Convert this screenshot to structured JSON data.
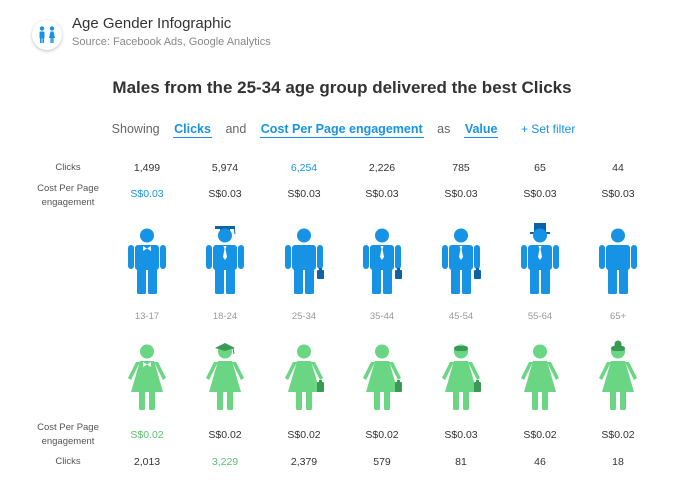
{
  "app": {
    "title": "Age Gender Infographic",
    "source": "Source: Facebook Ads, Google Analytics",
    "icon": "people-male-female-icon"
  },
  "headline": "Males from the 25-34 age group delivered the best Clicks",
  "filter": {
    "showing": "Showing",
    "metric1": "Clicks",
    "and": "and",
    "metric2": "Cost Per Page engagement",
    "as": "as",
    "mode": "Value",
    "set_filter": "+ Set filter"
  },
  "labels": {
    "clicks": "Clicks",
    "cost": "Cost Per Page engagement"
  },
  "ages": [
    "13-17",
    "18-24",
    "25-34",
    "35-44",
    "45-54",
    "55-64",
    "65+"
  ],
  "male": {
    "clicks": [
      "1,499",
      "5,974",
      "6,254",
      "2,226",
      "785",
      "65",
      "44"
    ],
    "cost": [
      "S$0.03",
      "S$0.03",
      "S$0.03",
      "S$0.03",
      "S$0.03",
      "S$0.03",
      "S$0.03"
    ]
  },
  "female": {
    "cost": [
      "S$0.02",
      "S$0.02",
      "S$0.02",
      "S$0.02",
      "S$0.03",
      "S$0.02",
      "S$0.02"
    ],
    "clicks": [
      "2,013",
      "3,229",
      "2,379",
      "579",
      "81",
      "46",
      "18"
    ]
  },
  "colors": {
    "male": "#1793e6",
    "female": "#6ad583",
    "highlight_blue": "#1793e6",
    "highlight_green": "#5ac26f"
  }
}
